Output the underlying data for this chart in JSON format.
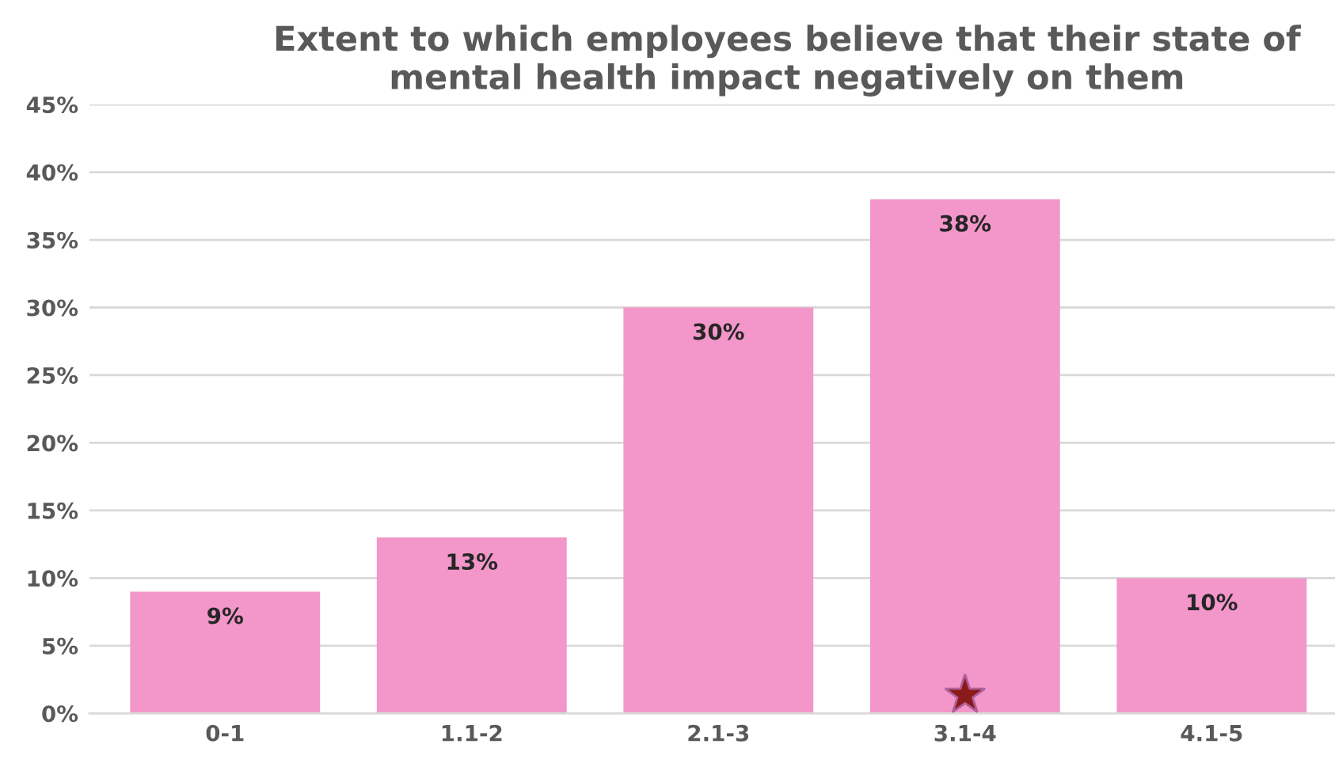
{
  "chart_data": {
    "type": "bar",
    "title": "Extent to which employees believe that their state of\nmental health impact negatively on them",
    "categories": [
      "0-1",
      "1.1-2",
      "2.1-3",
      "3.1-4",
      "4.1-5"
    ],
    "values": [
      9,
      13,
      30,
      38,
      10
    ],
    "value_labels": [
      "9%",
      "13%",
      "30%",
      "38%",
      "10%"
    ],
    "color": "#f396c9",
    "ylim": [
      0,
      45
    ],
    "yticks": [
      {
        "value": 0,
        "label": "0%"
      },
      {
        "value": 5,
        "label": "5%"
      },
      {
        "value": 10,
        "label": "10%"
      },
      {
        "value": 15,
        "label": "15%"
      },
      {
        "value": 20,
        "label": "20%"
      },
      {
        "value": 25,
        "label": "25%"
      },
      {
        "value": 30,
        "label": "30%"
      },
      {
        "value": 35,
        "label": "35%"
      },
      {
        "value": 40,
        "label": "40%"
      },
      {
        "value": 45,
        "label": "45%"
      }
    ],
    "grid": "y"
  }
}
